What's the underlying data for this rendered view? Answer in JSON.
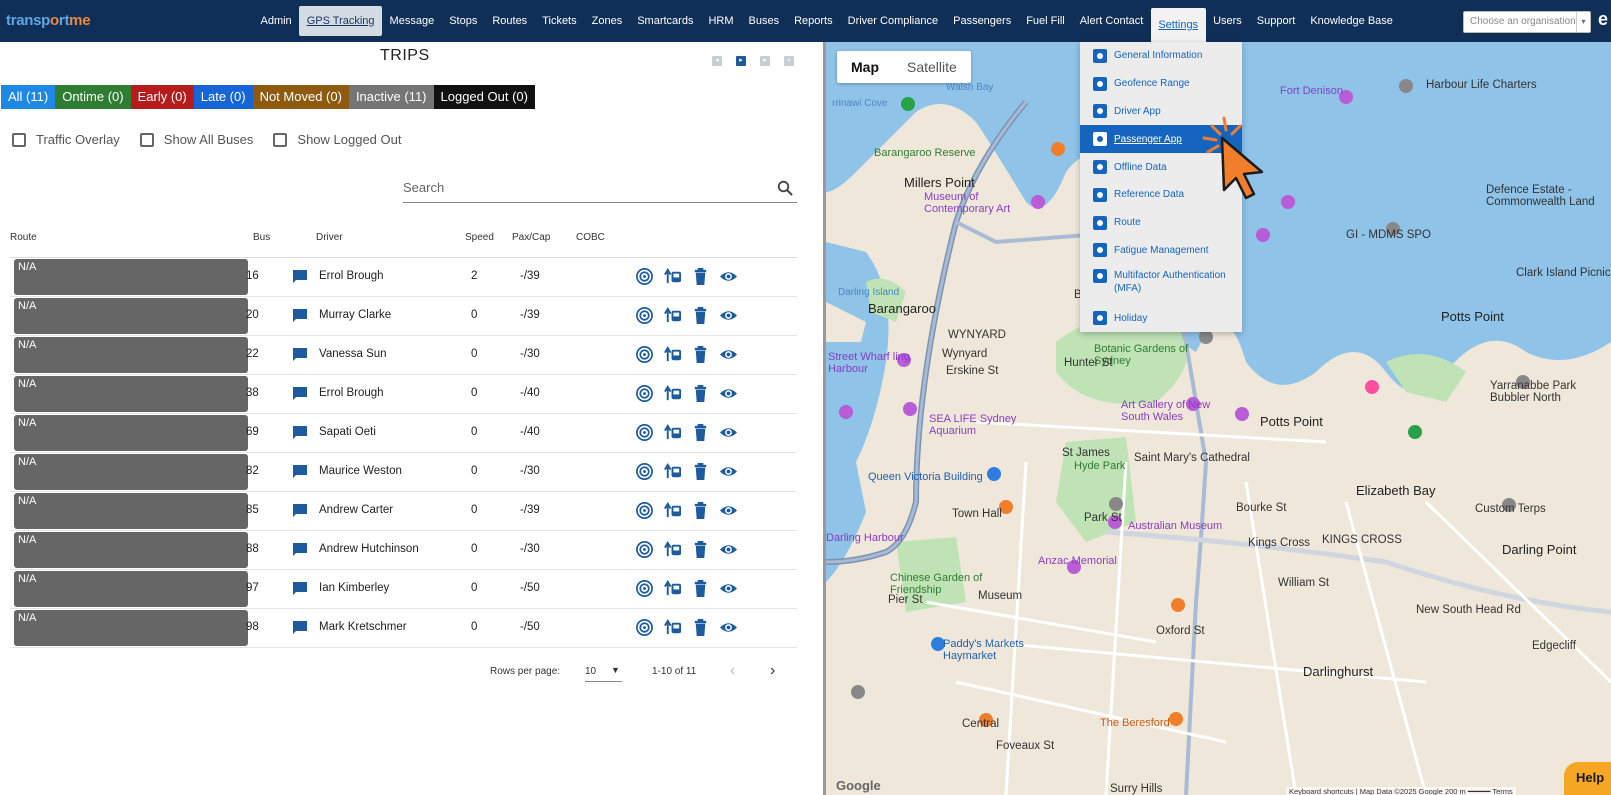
{
  "brand": {
    "part1": "transp",
    "part2": "o",
    "part3": "rt",
    "part4": "me"
  },
  "nav": {
    "items": [
      "Admin",
      "GPS Tracking",
      "Message",
      "Stops",
      "Routes",
      "Tickets",
      "Zones",
      "Smartcards",
      "HRM",
      "Buses",
      "Reports",
      "Driver Compliance",
      "Passengers",
      "Fuel Fill",
      "Alert Contact",
      "Settings",
      "Users",
      "Support",
      "Knowledge Base"
    ],
    "org_placeholder": "Choose an organisation"
  },
  "trips": {
    "title": "TRIPS",
    "filters": [
      {
        "label": "All (11)",
        "color": "#1e88e5"
      },
      {
        "label": "Ontime (0)",
        "color": "#2e7d32"
      },
      {
        "label": "Early (0)",
        "color": "#b71c1c"
      },
      {
        "label": "Late (0)",
        "color": "#1565d8"
      },
      {
        "label": "Not Moved (0)",
        "color": "#8d5a10"
      },
      {
        "label": "Inactive (11)",
        "color": "#757575"
      },
      {
        "label": "Logged Out (0)",
        "color": "#111111"
      }
    ],
    "checkboxes": [
      "Traffic Overlay",
      "Show All Buses",
      "Show Logged Out"
    ],
    "search_placeholder": "Search",
    "columns": [
      "Route",
      "Bus",
      "Driver",
      "Speed",
      "Pax/Cap",
      "COBC"
    ],
    "rows": [
      {
        "route": "N/A",
        "bus": "16",
        "driver": "Errol Brough",
        "speed": "2",
        "pax": "-/39"
      },
      {
        "route": "N/A",
        "bus": "20",
        "driver": "Murray Clarke",
        "speed": "0",
        "pax": "-/39"
      },
      {
        "route": "N/A",
        "bus": "22",
        "driver": "Vanessa Sun",
        "speed": "0",
        "pax": "-/30"
      },
      {
        "route": "N/A",
        "bus": "38",
        "driver": "Errol Brough",
        "speed": "0",
        "pax": "-/40"
      },
      {
        "route": "N/A",
        "bus": "69",
        "driver": "Sapati Oeti",
        "speed": "0",
        "pax": "-/40"
      },
      {
        "route": "N/A",
        "bus": "82",
        "driver": "Maurice Weston",
        "speed": "0",
        "pax": "-/30"
      },
      {
        "route": "N/A",
        "bus": "85",
        "driver": "Andrew Carter",
        "speed": "0",
        "pax": "-/39"
      },
      {
        "route": "N/A",
        "bus": "88",
        "driver": "Andrew Hutchinson",
        "speed": "0",
        "pax": "-/30"
      },
      {
        "route": "N/A",
        "bus": "97",
        "driver": "Ian Kimberley",
        "speed": "0",
        "pax": "-/50"
      },
      {
        "route": "N/A",
        "bus": "98",
        "driver": "Mark Kretschmer",
        "speed": "0",
        "pax": "-/50"
      }
    ],
    "pager": {
      "rows_per_page_label": "Rows per page:",
      "rows_per_page": "10",
      "range": "1-10 of 11"
    }
  },
  "map": {
    "tabs": [
      "Map",
      "Satellite"
    ],
    "labels": [
      {
        "text": "Millers Point",
        "cls": "big"
      },
      {
        "text": "Barangaroo",
        "cls": "big"
      },
      {
        "text": "WYNYARD",
        "cls": ""
      },
      {
        "text": "Wynyard",
        "cls": ""
      },
      {
        "text": "Potts Point",
        "cls": "big"
      },
      {
        "text": "Elizabeth Bay",
        "cls": "big"
      },
      {
        "text": "KINGS CROSS",
        "cls": ""
      },
      {
        "text": "Darlinghurst",
        "cls": "big"
      },
      {
        "text": "Darling Point",
        "cls": "big"
      },
      {
        "text": "Potts Point",
        "cls": "big"
      },
      {
        "text": "Fort Denison",
        "cls": "purple"
      },
      {
        "text": "Harbour Life Charters",
        "cls": ""
      },
      {
        "text": "Defence Estate - Commonwealth Land",
        "cls": ""
      },
      {
        "text": "GI - MDMS SPO",
        "cls": ""
      },
      {
        "text": "Clark Island Picnic",
        "cls": ""
      },
      {
        "text": "Museum of Contemporary Art",
        "cls": "purple"
      },
      {
        "text": "Barangaroo Reserve",
        "cls": "green"
      },
      {
        "text": "Botanic Gardens of Sydney",
        "cls": "green"
      },
      {
        "text": "Art Gallery of New South Wales",
        "cls": "purple"
      },
      {
        "text": "SEA LIFE Sydney Aquarium",
        "cls": "purple"
      },
      {
        "text": "Queen Victoria Building",
        "cls": "blue"
      },
      {
        "text": "St James",
        "cls": ""
      },
      {
        "text": "Hyde Park",
        "cls": "green"
      },
      {
        "text": "Saint Mary's Cathedral",
        "cls": ""
      },
      {
        "text": "Australian Museum",
        "cls": "purple"
      },
      {
        "text": "Town Hall",
        "cls": ""
      },
      {
        "text": "Anzac Memorial",
        "cls": "purple"
      },
      {
        "text": "Chinese Garden of Friendship",
        "cls": "green"
      },
      {
        "text": "Museum",
        "cls": ""
      },
      {
        "text": "Kings Cross",
        "cls": ""
      },
      {
        "text": "Custom Terps",
        "cls": ""
      },
      {
        "text": "Paddy's Markets Haymarket",
        "cls": "blue"
      },
      {
        "text": "Central",
        "cls": ""
      },
      {
        "text": "The Beresford",
        "cls": "orange"
      },
      {
        "text": "Yarranabbe Park Bubbler North",
        "cls": ""
      },
      {
        "text": "Edgecliff",
        "cls": ""
      },
      {
        "text": "Surry Hills",
        "cls": ""
      },
      {
        "text": "Street Wharf ling Harbour",
        "cls": "purple"
      },
      {
        "text": "Darling Harbour",
        "cls": "purple"
      },
      {
        "text": "Pier St",
        "cls": ""
      },
      {
        "text": "Hunter St",
        "cls": ""
      },
      {
        "text": "Bridge St",
        "cls": ""
      },
      {
        "text": "Erskine St",
        "cls": ""
      },
      {
        "text": "Park St",
        "cls": ""
      },
      {
        "text": "William St",
        "cls": ""
      },
      {
        "text": "Oxford St",
        "cls": ""
      },
      {
        "text": "Foveaux St",
        "cls": ""
      },
      {
        "text": "Bourke St",
        "cls": ""
      },
      {
        "text": "New South Head Rd",
        "cls": ""
      },
      {
        "text": "Walsh Bay",
        "cls": "water"
      },
      {
        "text": "rrinawi Cove",
        "cls": "water"
      },
      {
        "text": "Darling Island",
        "cls": "water"
      }
    ],
    "google": "Google",
    "footer": "Keyboard shortcuts  |  Map Data ©2025 Google   200 m  ━━━━━   Terms",
    "help": "Help"
  },
  "settings_menu": {
    "items": [
      {
        "label": "General Information"
      },
      {
        "label": "Geofence Range"
      },
      {
        "label": "Driver App"
      },
      {
        "label": "Passenger App",
        "active": true
      },
      {
        "label": "Offline Data"
      },
      {
        "label": "Reference Data"
      },
      {
        "label": "Route"
      },
      {
        "label": "Fatigue Management"
      },
      {
        "label": "Multifactor Authentication (MFA)"
      },
      {
        "label": "Holiday"
      }
    ]
  }
}
